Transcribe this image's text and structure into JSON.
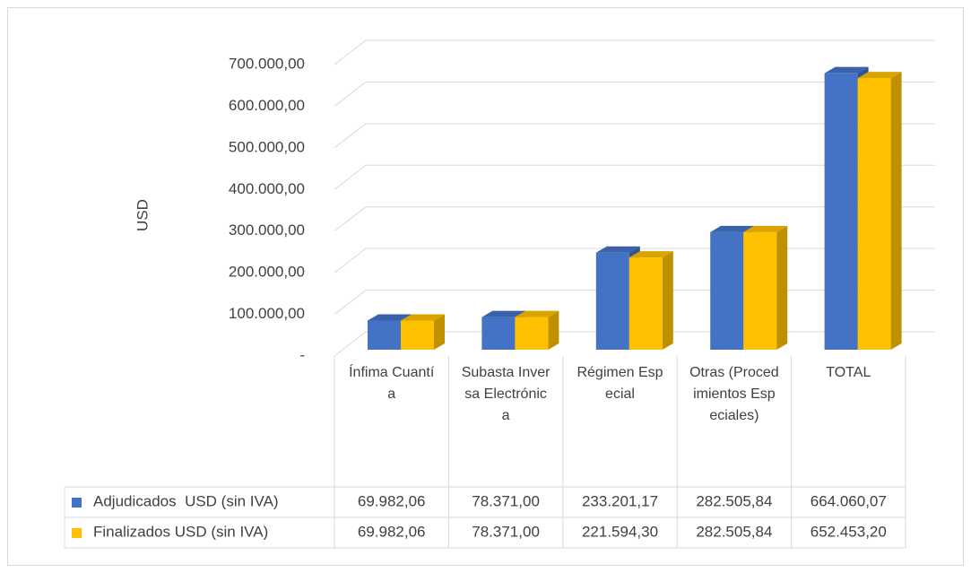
{
  "chart_data": {
    "type": "bar3d",
    "y_label": "USD",
    "categories": [
      "Ínfima Cuantía",
      "Subasta Inversa Electrónica",
      "Régimen Especial",
      "Otras (Procedimientos Especiales)",
      "TOTAL"
    ],
    "series": [
      {
        "name": "Adjudicados  USD (sin IVA)",
        "color": "#4472c4",
        "values": [
          69982.06,
          78371.0,
          233201.17,
          282505.84,
          664060.07
        ],
        "value_labels": [
          "69.982,06",
          "78.371,00",
          "233.201,17",
          "282.505,84",
          "664.060,07"
        ]
      },
      {
        "name": "Finalizados USD (sin IVA)",
        "color": "#ffc000",
        "values": [
          69982.06,
          78371.0,
          221594.3,
          282505.84,
          652453.2
        ],
        "value_labels": [
          "69.982,06",
          "78.371,00",
          "221.594,30",
          "282.505,84",
          "652.453,20"
        ]
      }
    ],
    "ylim": [
      0,
      700000
    ],
    "yticks": [
      {
        "value": 0,
        "label": "-"
      },
      {
        "value": 100000,
        "label": "100.000,00"
      },
      {
        "value": 200000,
        "label": "200.000,00"
      },
      {
        "value": 300000,
        "label": "300.000,00"
      },
      {
        "value": 400000,
        "label": "400.000,00"
      },
      {
        "value": 500000,
        "label": "500.000,00"
      },
      {
        "value": 600000,
        "label": "600.000,00"
      },
      {
        "value": 700000,
        "label": "700.000,00"
      }
    ],
    "grid": true
  }
}
